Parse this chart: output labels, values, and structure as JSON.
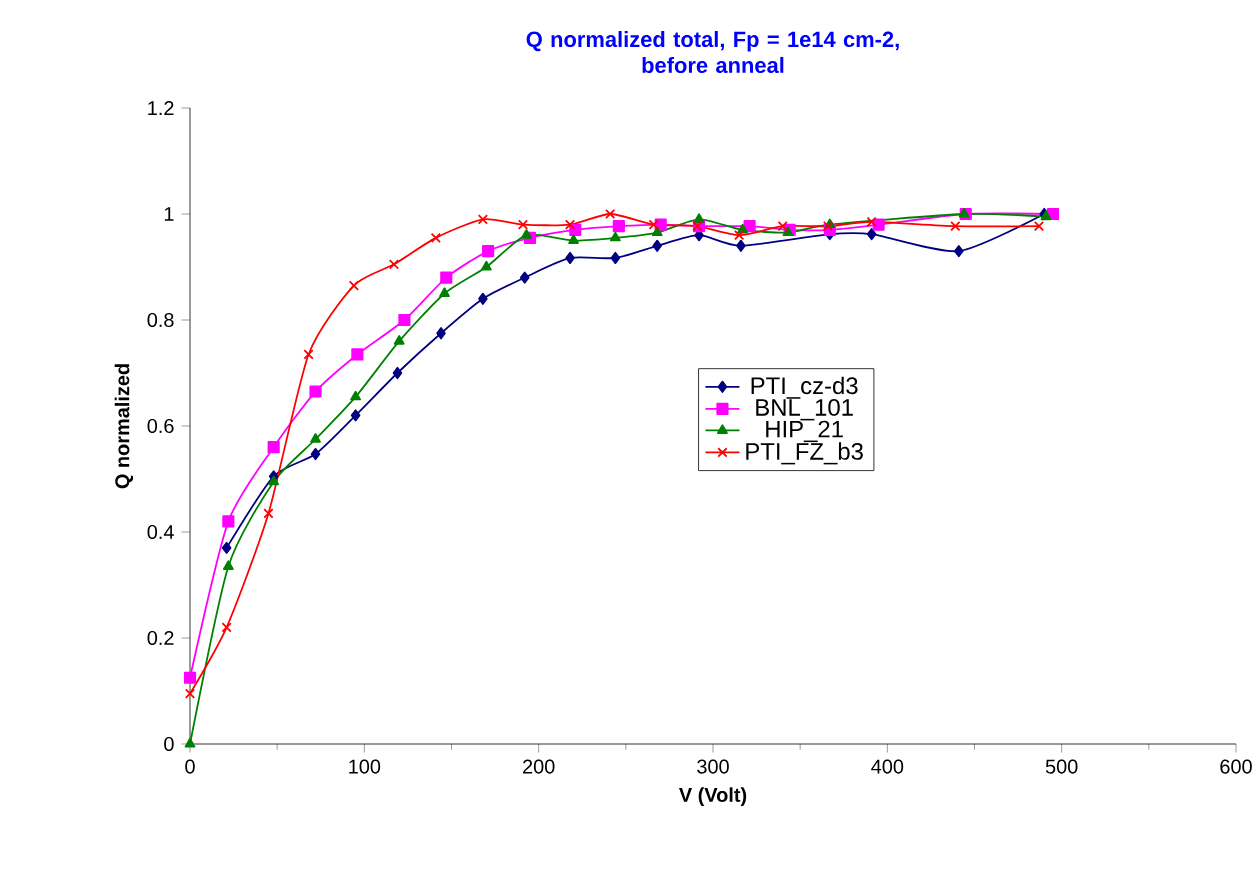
{
  "chart_data": {
    "type": "line",
    "title": "Q normalized total, Fp = 1e14 cm-2,\nbefore anneal",
    "xlabel": "V (Volt)",
    "ylabel": "Q normalized",
    "xlim": [
      0,
      600
    ],
    "ylim": [
      0,
      1.2
    ],
    "xticks": [
      0,
      100,
      200,
      300,
      400,
      500,
      600
    ],
    "yticks": [
      0,
      0.2,
      0.4,
      0.6,
      0.8,
      1,
      1.2
    ],
    "legend": "center",
    "grid": false,
    "series": [
      {
        "name": "PTI_cz-d3",
        "color": "#000080",
        "marker": "diamond",
        "x": [
          21,
          48,
          72,
          95,
          119,
          144,
          168,
          192,
          218,
          244,
          268,
          292,
          316,
          367,
          391,
          441,
          490
        ],
        "values": [
          0.37,
          0.505,
          0.547,
          0.62,
          0.7,
          0.775,
          0.84,
          0.88,
          0.917,
          0.917,
          0.94,
          0.96,
          0.94,
          0.962,
          0.962,
          0.93,
          1.0
        ]
      },
      {
        "name": "BNL_101",
        "color": "#ff00ff",
        "marker": "square",
        "x": [
          0,
          22,
          48,
          72,
          96,
          123,
          147,
          171,
          195,
          221,
          246,
          270,
          292,
          321,
          344,
          367,
          395,
          445,
          495
        ],
        "values": [
          0.125,
          0.42,
          0.56,
          0.665,
          0.735,
          0.8,
          0.88,
          0.93,
          0.955,
          0.97,
          0.977,
          0.98,
          0.977,
          0.977,
          0.97,
          0.97,
          0.98,
          1.0,
          1.0
        ]
      },
      {
        "name": "HIP_21",
        "color": "#008000",
        "marker": "triangle",
        "x": [
          0,
          22,
          48,
          72,
          95,
          120,
          146,
          170,
          193,
          220,
          244,
          268,
          292,
          317,
          343,
          367,
          444,
          491
        ],
        "values": [
          0,
          0.335,
          0.495,
          0.575,
          0.655,
          0.76,
          0.85,
          0.9,
          0.96,
          0.95,
          0.955,
          0.965,
          0.99,
          0.97,
          0.965,
          0.98,
          1.0,
          0.995
        ]
      },
      {
        "name": "PTI_FZ_b3",
        "color": "#ff0000",
        "marker": "cross",
        "x": [
          0,
          21,
          45,
          68,
          94,
          117,
          141,
          168,
          191,
          218,
          241,
          266,
          291,
          315,
          340,
          366,
          391,
          439,
          487
        ],
        "values": [
          0.095,
          0.22,
          0.435,
          0.735,
          0.865,
          0.905,
          0.955,
          0.99,
          0.98,
          0.98,
          1.0,
          0.98,
          0.977,
          0.96,
          0.977,
          0.977,
          0.985,
          0.977,
          0.977
        ]
      }
    ]
  }
}
